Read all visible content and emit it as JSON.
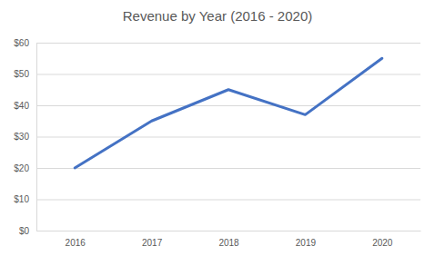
{
  "chart_data": {
    "type": "line",
    "title": "Revenue by Year (2016 - 2020)",
    "categories": [
      "2016",
      "2017",
      "2018",
      "2019",
      "2020"
    ],
    "values": [
      20,
      35,
      45,
      37,
      55
    ],
    "color": "#4472c4",
    "ylim": [
      0,
      60
    ],
    "yticks": [
      {
        "value": 0,
        "label": "$0"
      },
      {
        "value": 10,
        "label": "$10"
      },
      {
        "value": 20,
        "label": "$20"
      },
      {
        "value": 30,
        "label": "$30"
      },
      {
        "value": 40,
        "label": "$40"
      },
      {
        "value": 50,
        "label": "$50"
      },
      {
        "value": 60,
        "label": "$60"
      }
    ],
    "grid": true
  }
}
